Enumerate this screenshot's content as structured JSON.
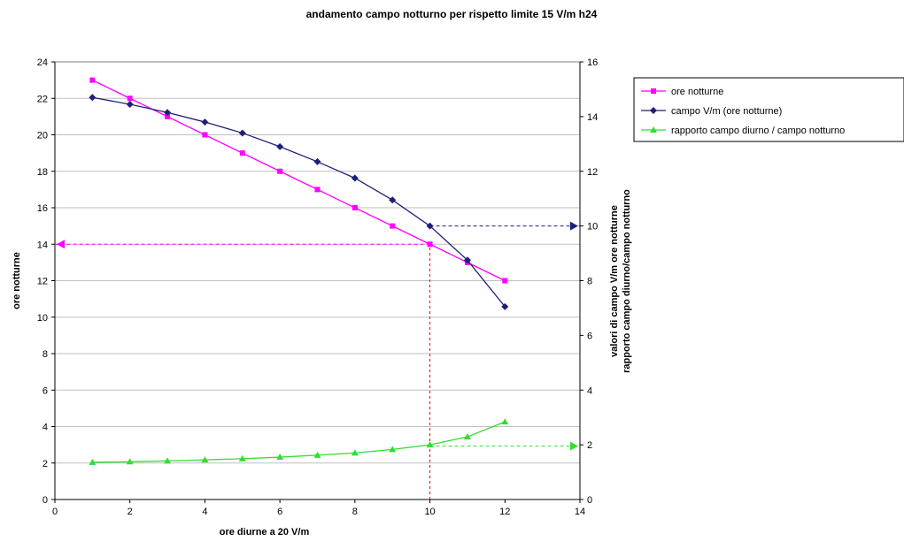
{
  "chart_data": {
    "type": "line",
    "title": "andamento campo notturno per rispetto limite 15 V/m h24",
    "xlabel": "ore diurne a 20 V/m",
    "ylabel_left": "ore notturne",
    "ylabel_right_line1": "valori di campo V/m ore notturne",
    "ylabel_right_line2": "rapporto campo diurno/campo notturno",
    "xlim": [
      0,
      14
    ],
    "xticks": [
      "0",
      "2",
      "4",
      "6",
      "8",
      "10",
      "12",
      "14"
    ],
    "ylim_left": [
      0,
      24
    ],
    "yticks_left": [
      "0",
      "2",
      "4",
      "6",
      "8",
      "10",
      "12",
      "14",
      "16",
      "18",
      "20",
      "22",
      "24"
    ],
    "ylim_right": [
      0,
      16
    ],
    "yticks_right": [
      "0",
      "2",
      "4",
      "6",
      "8",
      "10",
      "12",
      "14",
      "16"
    ],
    "grid": "horizontal",
    "legend_position": "top-right",
    "series": [
      {
        "name": "ore notturne",
        "axis": "left",
        "color": "#ff00ff",
        "marker": "square",
        "x": [
          1,
          2,
          3,
          4,
          5,
          6,
          7,
          8,
          9,
          10,
          11,
          12
        ],
        "y": [
          23,
          22,
          21,
          20,
          19,
          18,
          17,
          16,
          15,
          14,
          13,
          12
        ]
      },
      {
        "name": "campo V/m (ore notturne)",
        "axis": "right",
        "color": "#1f1f7a",
        "marker": "diamond",
        "x": [
          1,
          2,
          3,
          4,
          5,
          6,
          7,
          8,
          9,
          10,
          11,
          12
        ],
        "y": [
          14.7,
          14.45,
          14.15,
          13.8,
          13.4,
          12.9,
          12.35,
          11.75,
          10.95,
          10.0,
          8.75,
          7.05
        ]
      },
      {
        "name": "rapporto campo diurno / campo notturno",
        "axis": "right",
        "color": "#33dd33",
        "marker": "triangle",
        "x": [
          1,
          2,
          3,
          4,
          5,
          6,
          7,
          8,
          9,
          10,
          11,
          12
        ],
        "y": [
          1.36,
          1.38,
          1.41,
          1.45,
          1.49,
          1.55,
          1.62,
          1.7,
          1.83,
          2.0,
          2.29,
          2.84
        ]
      }
    ],
    "annotations": [
      {
        "kind": "dashed-arrow-left",
        "color": "#ff00ff",
        "axis": "left",
        "from_x": 10,
        "to_x": 0,
        "y": 14
      },
      {
        "kind": "dashed-arrow-right",
        "color": "#1f1f7a",
        "axis": "right",
        "from_x": 10,
        "to_x": 14,
        "y": 10
      },
      {
        "kind": "dashed-arrow-right",
        "color": "#33dd33",
        "axis": "right",
        "from_x": 10,
        "to_x": 14,
        "y": 1.95
      },
      {
        "kind": "dashed-vertical",
        "color": "#ff0000",
        "x": 10,
        "from_y_left": 0,
        "to_y_left": 14
      }
    ]
  }
}
